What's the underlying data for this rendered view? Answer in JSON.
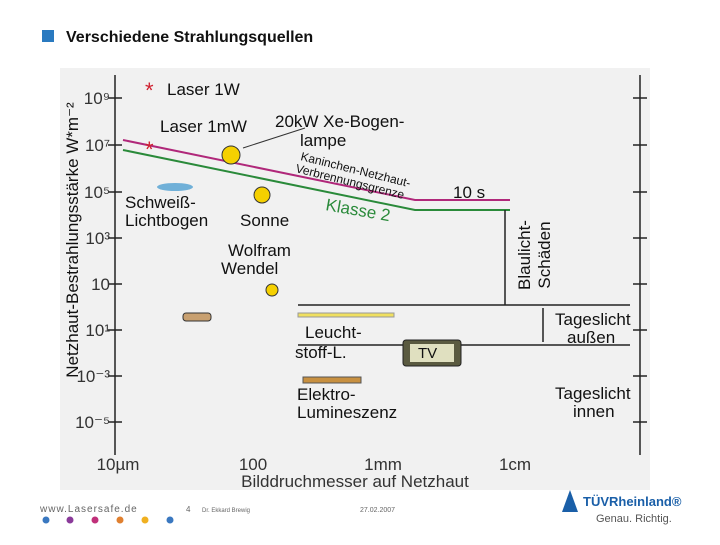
{
  "header": {
    "title": "Verschiedene Strahlungsquellen"
  },
  "diagram": {
    "y_axis_label": "Netzhaut-Bestrahlungsstärke W*m⁻²",
    "y_ticks": [
      "10⁹",
      "10⁷",
      "10⁵",
      "10³",
      "10",
      "10¹",
      "10⁻³",
      "10⁻⁵"
    ],
    "x_ticks": [
      "10µm",
      "100",
      "1mm",
      "1cm"
    ],
    "x_axis_label": "Bilddruchmesser auf Netzhaut",
    "labels": [
      "Laser 1W",
      "Laser 1mW",
      "20kW Xe-Bogen-",
      "lampe",
      "Kaninchen-Netzhaut-",
      "Verbrennungsgrenze",
      "10 s",
      "Klasse 2",
      "Schweiß-",
      "Lichtbogen",
      "Sonne",
      "Wolfram",
      "Wendel",
      "Blaulicht-",
      "Schäden",
      "Tageslicht",
      "außen",
      "Leucht-",
      "stoff-L.",
      "TV",
      "Elektro-",
      "Lumineszenz",
      "Tageslicht",
      "innen"
    ]
  },
  "footer": {
    "website": "www.Lasersafe.de",
    "page": "4",
    "author": "Dr. Ekkard Brewig",
    "date": "27.02.2007",
    "brand": "TÜVRheinland®",
    "slogan": "Genau. Richtig."
  }
}
